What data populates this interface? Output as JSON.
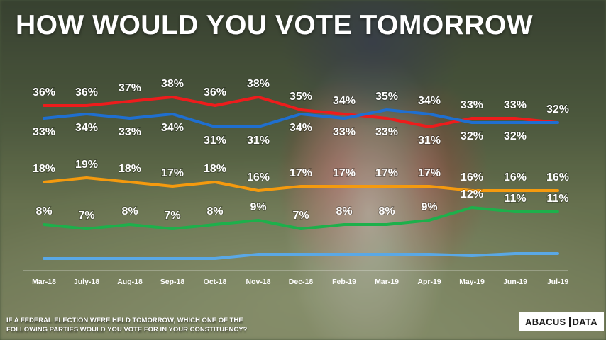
{
  "title": "HOW WOULD YOU VOTE TOMORROW",
  "footer": {
    "line1": "IF A FEDERAL ELECTION WERE HELD TOMORROW, WHICH ONE OF THE",
    "line2": "FOLLOWING PARTIES WOULD YOU VOTE FOR IN YOUR CONSTITUENCY?"
  },
  "logo": {
    "part1": "ABACUS",
    "part2": "DATA"
  },
  "colors": {
    "red": "#ee1c1c",
    "blue": "#1f6fd0",
    "orange": "#f59a0e",
    "green": "#1db04b",
    "lightblue": "#5aa8e6"
  },
  "chart_data": {
    "type": "line",
    "categories": [
      "Mar-18",
      "July-18",
      "Aug-18",
      "Sep-18",
      "Oct-18",
      "Nov-18",
      "Dec-18",
      "Feb-19",
      "Mar-19",
      "Apr-19",
      "May-19",
      "Jun-19",
      "Jul-19"
    ],
    "series": [
      {
        "color": "#ee1c1c",
        "values": [
          36,
          36,
          37,
          38,
          36,
          38,
          35,
          34,
          33,
          31,
          33,
          33,
          32
        ],
        "labels": [
          "36%",
          "36%",
          "37%",
          "38%",
          "36%",
          "38%",
          "35%",
          "34%",
          "33%",
          "31%",
          "33%",
          "33%",
          "32%"
        ]
      },
      {
        "color": "#1f6fd0",
        "values": [
          33,
          34,
          33,
          34,
          31,
          31,
          34,
          33,
          35,
          34,
          32,
          32,
          32
        ],
        "labels": [
          "33%",
          "34%",
          "33%",
          "34%",
          "31%",
          "31%",
          "34%",
          "33%",
          "35%",
          "34%",
          "32%",
          "32%",
          ""
        ]
      },
      {
        "color": "#f59a0e",
        "values": [
          18,
          19,
          18,
          17,
          18,
          16,
          17,
          17,
          17,
          17,
          16,
          16,
          16
        ],
        "labels": [
          "18%",
          "19%",
          "18%",
          "17%",
          "18%",
          "16%",
          "17%",
          "17%",
          "17%",
          "17%",
          "16%",
          "16%",
          "16%"
        ]
      },
      {
        "color": "#1db04b",
        "values": [
          8,
          7,
          8,
          7,
          8,
          9,
          7,
          8,
          8,
          9,
          12,
          11,
          11
        ],
        "labels": [
          "8%",
          "7%",
          "8%",
          "7%",
          "8%",
          "9%",
          "7%",
          "8%",
          "8%",
          "9%",
          "12%",
          "11%",
          "11%"
        ]
      },
      {
        "color": "#5aa8e6",
        "values": [
          null,
          null,
          null,
          null,
          null,
          null,
          null,
          null,
          null,
          null,
          null,
          null,
          null
        ],
        "labels": [
          "",
          "",
          "",
          "",
          "",
          "",
          "",
          "",
          "",
          "",
          "",
          "",
          ""
        ]
      }
    ]
  }
}
